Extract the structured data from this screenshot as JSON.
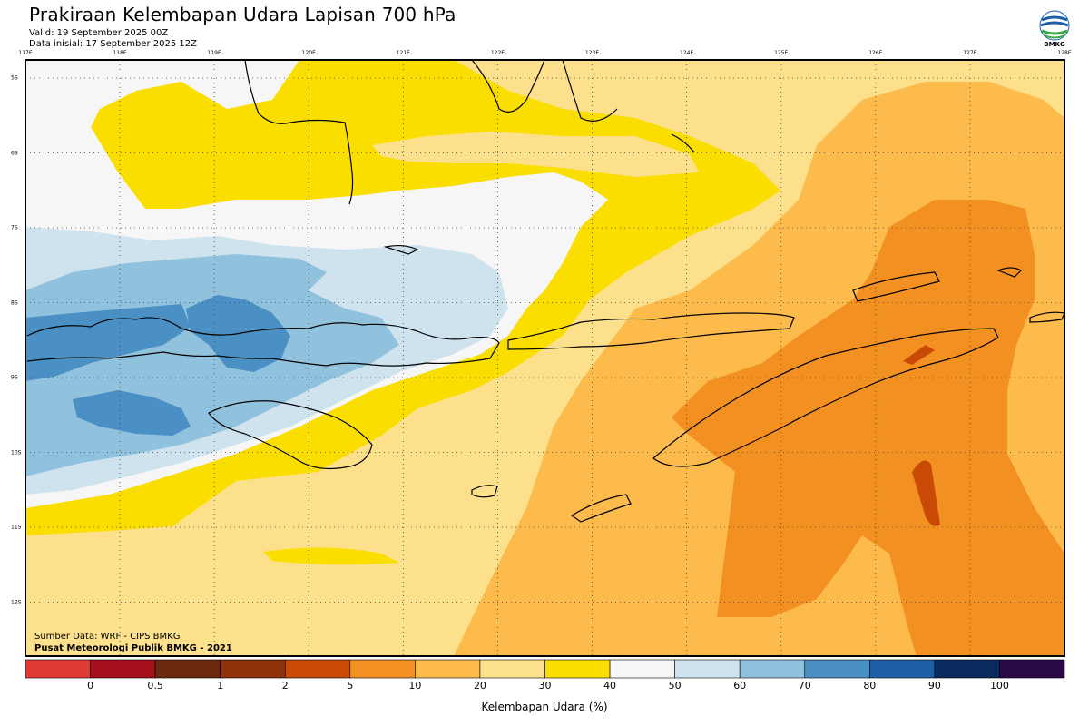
{
  "title": "Prakiraan Kelembapan Udara Lapisan 700 hPa",
  "valid": "Valid: 19 September 2025 00Z",
  "initial": "Data inisial: 17 September 2025 12Z",
  "logo": {
    "text": "BMKG"
  },
  "lon_labels": [
    "117E",
    "118E",
    "119E",
    "120E",
    "121E",
    "122E",
    "123E",
    "124E",
    "125E",
    "126E",
    "127E",
    "128E"
  ],
  "lat_labels": [
    "5S",
    "6S",
    "7S",
    "8S",
    "9S",
    "10S",
    "11S",
    "12S"
  ],
  "credit_source": "Sumber Data: WRF - CIPS BMKG",
  "credit_center": "Pusat Meteorologi Publik BMKG - 2021",
  "colorbar": {
    "title": "Kelembapan Udara (%)",
    "tick_labels": [
      "0",
      "0.5",
      "1",
      "2",
      "5",
      "10",
      "20",
      "30",
      "40",
      "50",
      "60",
      "70",
      "80",
      "90",
      "100"
    ],
    "colors": [
      "#e03a33",
      "#a6101c",
      "#6b2a10",
      "#8f320c",
      "#c84a05",
      "#f39022",
      "#fdbb4b",
      "#fde08b",
      "#fade00",
      "#f6f6f6",
      "#cfe3ef",
      "#91c2dd",
      "#4a90c4",
      "#1f5fa8",
      "#0a2b5e",
      "#2a0845"
    ]
  }
}
